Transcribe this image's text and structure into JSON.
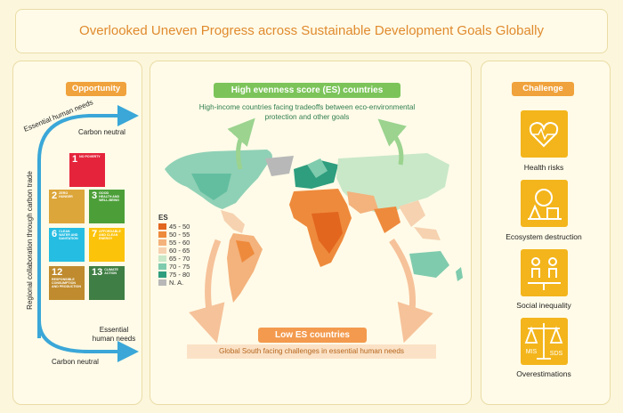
{
  "header": {
    "title": "Overlooked Uneven Progress across Sustainable Development Goals Globally"
  },
  "opportunity": {
    "label": "Opportunity",
    "top_arrow": "Essential human needs",
    "top_end": "Carbon neutral",
    "side": "Regional collaboration through carbon trade",
    "bottom_arrow": "Essential human needs",
    "bottom_end": "Carbon neutral",
    "sdgs": [
      {
        "number": "1",
        "name": "NO POVERTY"
      },
      {
        "number": "2",
        "name": "ZERO HUNGER"
      },
      {
        "number": "3",
        "name": "GOOD HEALTH AND WELL-BEING"
      },
      {
        "number": "6",
        "name": "CLEAN WATER AND SANITATION"
      },
      {
        "number": "7",
        "name": "AFFORDABLE AND CLEAN ENERGY"
      },
      {
        "number": "12",
        "name": "RESPONSIBLE CONSUMPTION AND PRODUCTION"
      },
      {
        "number": "13",
        "name": "CLIMATE ACTION"
      }
    ]
  },
  "map": {
    "high_title": "High evenness score (ES) countries",
    "high_subtitle": "High-income countries facing tradeoffs between eco-environmental protection and other goals",
    "legend_title": "ES",
    "legend": [
      "45 - 50",
      "50 - 55",
      "55 - 60",
      "60 - 65",
      "65 - 70",
      "70 - 75",
      "75 - 80",
      "N. A."
    ],
    "low_title": "Low ES countries",
    "low_subtitle": "Global South facing challenges in essential human needs"
  },
  "challenge": {
    "label": "Challenge",
    "items": [
      "Health risks",
      "Ecosystem destruction",
      "Social inequality",
      "Overestimations"
    ],
    "scale_labels": [
      "MIS",
      "SDS"
    ]
  }
}
